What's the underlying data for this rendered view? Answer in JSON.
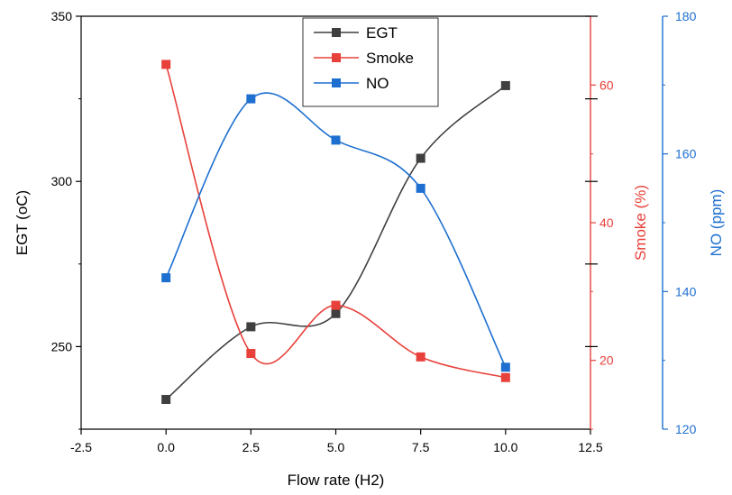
{
  "chart_data": {
    "type": "scatter",
    "x": [
      0.0,
      2.5,
      5.0,
      7.5,
      10.0
    ],
    "xlabel": "Flow rate (H2)",
    "xlim": [
      -2.5,
      12.5
    ],
    "xticks": [
      -2.5,
      0.0,
      2.5,
      5.0,
      7.5,
      10.0,
      12.5
    ],
    "xtick_labels": [
      "-2.5",
      "0.0",
      "2.5",
      "5.0",
      "7.5",
      "10.0",
      "12.5"
    ],
    "legend_position": "top-center",
    "grid": false,
    "series": [
      {
        "name": "EGT",
        "axis": "left",
        "values": [
          234,
          256,
          260,
          307,
          329
        ],
        "color": "#3f3f3f",
        "ylabel": "EGT (oC)",
        "ylim": [
          225,
          350
        ],
        "yticks": [
          250,
          300,
          350
        ],
        "ytick_labels": [
          "250",
          "300",
          "350"
        ],
        "marker": "square",
        "fit_line": "spline"
      },
      {
        "name": "Smoke",
        "axis": "right-1",
        "values": [
          63,
          21,
          28,
          20.5,
          17.5
        ],
        "color": "#e8403a",
        "ylabel": "Smoke (%)",
        "ylim": [
          10,
          70
        ],
        "yticks": [
          20,
          40,
          60
        ],
        "ytick_labels": [
          "20",
          "40",
          "60"
        ],
        "marker": "square",
        "fit_line": "spline"
      },
      {
        "name": "NO",
        "axis": "right-2",
        "values": [
          142,
          168,
          162,
          155,
          129
        ],
        "color": "#1e6fd0",
        "ylabel": "NO (ppm)",
        "ylim": [
          120,
          180
        ],
        "yticks": [
          120,
          140,
          160,
          180
        ],
        "ytick_labels": [
          "120",
          "140",
          "160",
          "180"
        ],
        "marker": "square",
        "fit_line": "spline"
      }
    ]
  }
}
